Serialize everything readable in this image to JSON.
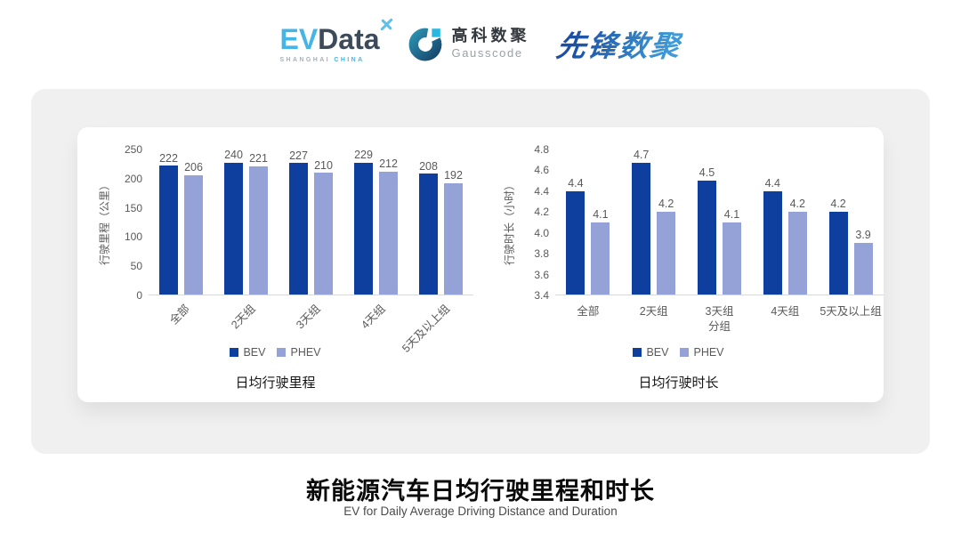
{
  "header": {
    "evdata": {
      "part1": "EV",
      "part2": "Data",
      "sub_left": "SHANGHAI",
      "sub_right": "CHINA"
    },
    "gausscode": {
      "name_cn": "高科数聚",
      "name_en": "Gausscode"
    },
    "pioneer": {
      "name": "先锋数聚"
    }
  },
  "colors": {
    "series_colors": [
      "#0e3f9f",
      "#94a2d8"
    ],
    "axis_text": "#595959",
    "axis_line": "#d9d9d9"
  },
  "chart_data": [
    {
      "type": "bar",
      "title": "日均行驶里程",
      "ylabel": "行驶里程（公里）",
      "xlabel": "",
      "categories": [
        "全部",
        "2天组",
        "3天组",
        "4天组",
        "5天及以上组"
      ],
      "series": [
        {
          "name": "BEV",
          "values": [
            222,
            240,
            227,
            229,
            208
          ]
        },
        {
          "name": "PHEV",
          "values": [
            206,
            221,
            210,
            212,
            192
          ]
        }
      ],
      "ylim": [
        0,
        250
      ],
      "yticks": [
        0,
        50,
        100,
        150,
        200,
        250
      ],
      "decimals": 0,
      "x_label_rotation": -45,
      "grid": false,
      "legend_position": "bottom"
    },
    {
      "type": "bar",
      "title": "日均行驶时长",
      "ylabel": "行驶时长（小时）",
      "xlabel": "分组",
      "categories": [
        "全部",
        "2天组",
        "3天组",
        "4天组",
        "5天及以上组"
      ],
      "series": [
        {
          "name": "BEV",
          "values": [
            4.4,
            4.7,
            4.5,
            4.4,
            4.2
          ]
        },
        {
          "name": "PHEV",
          "values": [
            4.1,
            4.2,
            4.1,
            4.2,
            3.9
          ]
        }
      ],
      "ylim": [
        3.4,
        4.8
      ],
      "yticks": [
        3.4,
        3.6,
        3.8,
        4.0,
        4.2,
        4.4,
        4.6,
        4.8
      ],
      "decimals": 1,
      "x_label_rotation": 0,
      "grid": false,
      "legend_position": "bottom"
    }
  ],
  "footer": {
    "title": "新能源汽车日均行驶里程和时长",
    "subtitle": "EV for Daily Average Driving Distance and Duration"
  }
}
